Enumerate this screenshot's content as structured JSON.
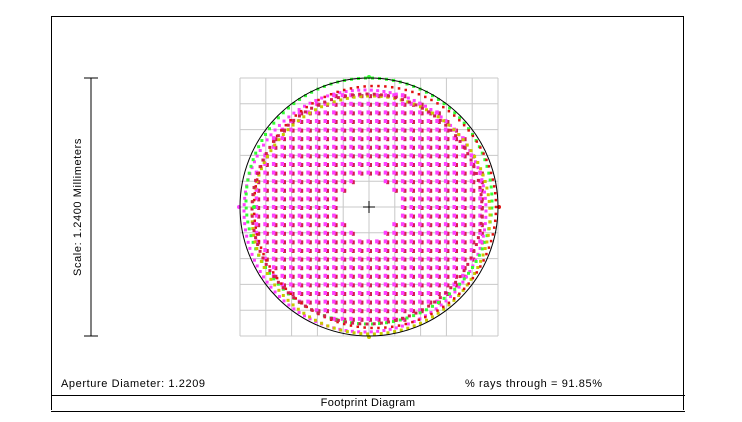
{
  "chart_data": {
    "type": "scatter",
    "title": "Footprint Diagram",
    "scale_label": "Scale: 1.2400 Millimeters",
    "aperture_label": "Aperture Diameter: 1.2209",
    "rays_label": "% rays through = 91.85%",
    "grid": true,
    "grid_divisions": 10,
    "aperture_circle": true,
    "central_obscuration": true,
    "series": [
      {
        "color": "#ff40ff",
        "role": "magenta field"
      },
      {
        "color": "#d02050",
        "role": "dark red field"
      },
      {
        "color": "#33ff33",
        "role": "green field"
      },
      {
        "color": "#c8c800",
        "role": "yellow field"
      },
      {
        "color": "#e01010",
        "role": "red field"
      }
    ],
    "colors": {
      "grid": "#c8c8c8",
      "circle": "#000000",
      "frame": "#000000"
    }
  }
}
